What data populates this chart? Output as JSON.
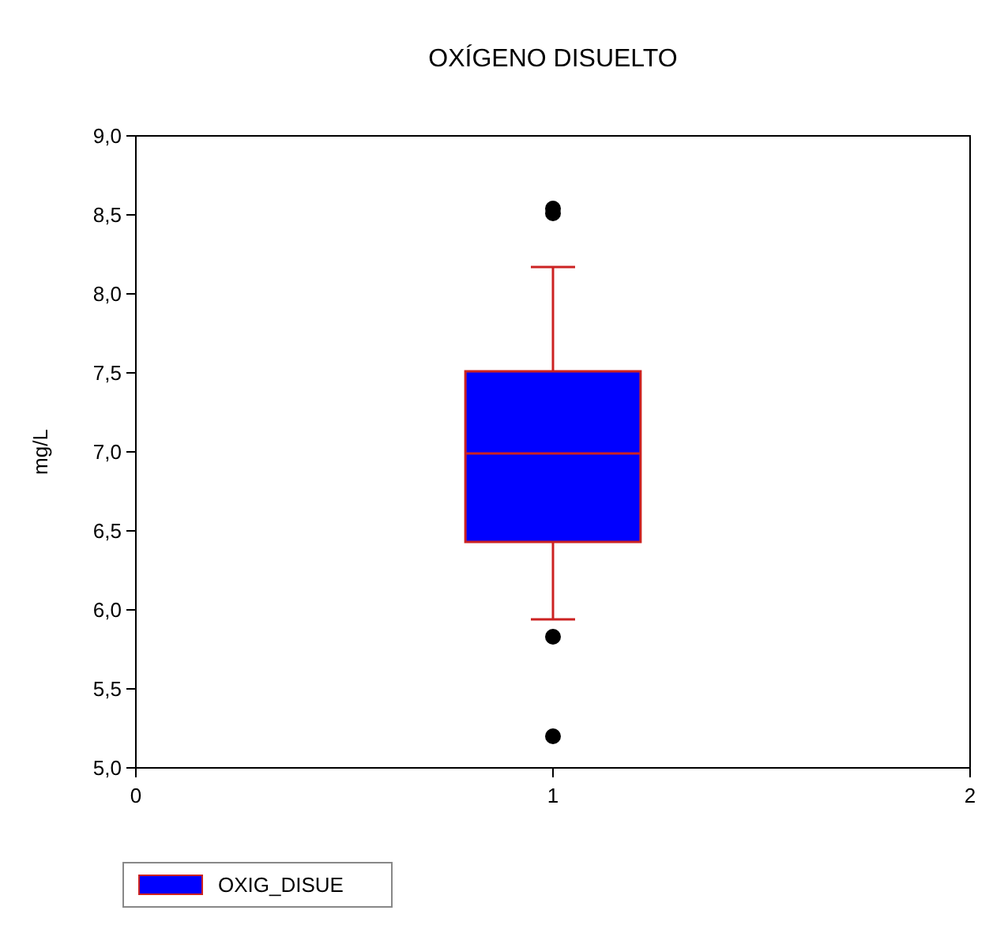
{
  "chart_data": {
    "type": "box",
    "title": "OXÍGENO DISUELTO",
    "ylabel": "mg/L",
    "xlim": [
      0,
      2
    ],
    "xticks": [
      0,
      1,
      2
    ],
    "ylim": [
      5,
      9
    ],
    "yticks": [
      {
        "value": 5,
        "label": "5,0"
      },
      {
        "value": 5.5,
        "label": "5,5"
      },
      {
        "value": 6,
        "label": "6,0"
      },
      {
        "value": 6.5,
        "label": "6,5"
      },
      {
        "value": 7,
        "label": "7,0"
      },
      {
        "value": 7.5,
        "label": "7,5"
      },
      {
        "value": 8,
        "label": "8,0"
      },
      {
        "value": 8.5,
        "label": "8,5"
      },
      {
        "value": 9,
        "label": "9,0"
      }
    ],
    "legend": "bottom left",
    "grid": false,
    "series": [
      {
        "name": "OXIG_DISUE",
        "color": "#0000ff",
        "x": [
          1
        ],
        "boxes": [
          {
            "low": 5.94,
            "q1": 6.43,
            "median": 6.99,
            "q3": 7.51,
            "high": 8.17,
            "outliers": [
              8.51,
              8.54,
              5.83,
              5.2
            ]
          }
        ]
      }
    ]
  }
}
